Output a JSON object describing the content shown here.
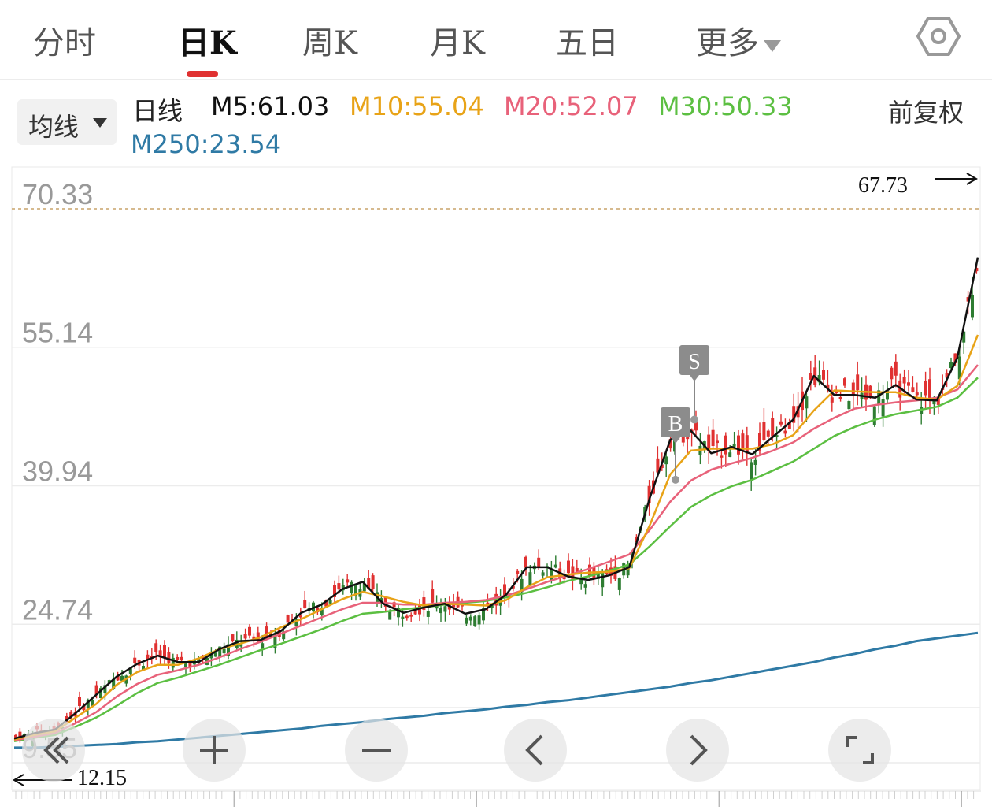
{
  "tabs": [
    {
      "label": "分时"
    },
    {
      "label": "日K"
    },
    {
      "label": "周K"
    },
    {
      "label": "月K"
    },
    {
      "label": "五日"
    },
    {
      "label": "更多"
    }
  ],
  "active_tab": "日K",
  "indicator_select": "均线",
  "period_label": "日线",
  "ma_values": {
    "m5": "M5:61.03",
    "m10": "M10:55.04",
    "m20": "M20:52.07",
    "m30": "M30:50.33",
    "m250": "M250:23.54"
  },
  "colors": {
    "m5": "#111111",
    "m10": "#e8a317",
    "m20": "#e8627a",
    "m30": "#5cbf42",
    "m250": "#2f7aa5",
    "up": "#e03131",
    "down": "#2e7d32"
  },
  "adjust_label": "前复权",
  "controls": [
    "double-left-arrow-icon",
    "zoom-in-icon",
    "zoom-out-icon",
    "left-arrow-icon",
    "right-arrow-icon",
    "fullscreen-icon"
  ],
  "chart_data": {
    "type": "candlestick",
    "y_tick_labels": [
      "70.33",
      "55.14",
      "39.94",
      "24.74",
      "9.55"
    ],
    "ylim": [
      9.55,
      70.33
    ],
    "max_label": "67.73",
    "min_label": "12.15",
    "annotations": [
      {
        "label": "B",
        "price": 40.6
      },
      {
        "label": "S",
        "price": 47.2
      }
    ],
    "series": [
      {
        "name": "M5",
        "values": [
          12.2,
          12.8,
          13.2,
          15,
          17,
          19,
          20.4,
          21.3,
          20.6,
          20.6,
          22,
          22.9,
          23,
          24,
          26,
          26.9,
          28.6,
          29.4,
          27,
          26,
          26.6,
          27,
          25.9,
          26.4,
          28,
          31,
          31,
          30,
          29.6,
          30.1,
          31,
          38.6,
          45,
          46,
          43.5,
          44.2,
          43.4,
          45.3,
          47.2,
          52,
          49.9,
          49.9,
          49.6,
          51,
          49.4,
          49.3,
          54,
          65
        ]
      },
      {
        "name": "M10",
        "values": [
          12.1,
          12.6,
          13,
          14.5,
          16,
          18.1,
          19.5,
          20.3,
          20.3,
          21,
          22,
          22.6,
          23.3,
          24.4,
          25.3,
          26.4,
          27.5,
          28.3,
          27.8,
          27.2,
          26.8,
          27,
          26.9,
          26.8,
          27.4,
          28.8,
          29.9,
          30.2,
          30.4,
          30.5,
          30.9,
          35.6,
          41.2,
          43.8,
          44,
          44,
          44,
          44.5,
          45.5,
          48.2,
          50.4,
          50.3,
          50.2,
          50.2,
          49.6,
          49.4,
          50.9,
          56.5
        ]
      },
      {
        "name": "M20",
        "values": [
          12,
          12.4,
          12.8,
          13.9,
          15.1,
          16.8,
          18.2,
          19.2,
          19.7,
          20.3,
          21.1,
          22,
          22.8,
          23.7,
          24.6,
          25.5,
          26.4,
          27.1,
          27.1,
          26.9,
          26.9,
          27.1,
          27.2,
          27.4,
          27.9,
          28.6,
          29.4,
          30.1,
          30.8,
          31.6,
          32.4,
          35.1,
          38.2,
          40.5,
          41.7,
          42.4,
          43,
          43.8,
          44.7,
          46.2,
          47.4,
          48.4,
          48.8,
          49.1,
          49.3,
          49.6,
          50.5,
          53.2
        ]
      },
      {
        "name": "M30",
        "values": [
          11.9,
          12.3,
          12.6,
          13.5,
          14.5,
          15.8,
          17.2,
          18.3,
          18.9,
          19.6,
          20.3,
          21.1,
          21.9,
          22.6,
          23.4,
          24.2,
          25.1,
          25.9,
          26.1,
          26.4,
          26.6,
          26.9,
          27.1,
          27.3,
          27.7,
          28.2,
          28.8,
          29.5,
          30,
          30.6,
          31.3,
          33.3,
          35.5,
          37.6,
          38.9,
          39.9,
          40.6,
          41.6,
          42.6,
          44,
          45.4,
          46.4,
          47.2,
          47.8,
          48.2,
          48.6,
          49.6,
          51.8
        ]
      },
      {
        "name": "M250",
        "values": [
          11.2,
          11.2,
          11.3,
          11.4,
          11.5,
          11.6,
          11.8,
          11.9,
          12.1,
          12.3,
          12.5,
          12.7,
          12.9,
          13.1,
          13.3,
          13.6,
          13.8,
          14,
          14.3,
          14.5,
          14.7,
          15,
          15.2,
          15.4,
          15.7,
          15.9,
          16.2,
          16.4,
          16.7,
          17,
          17.3,
          17.6,
          17.9,
          18.3,
          18.6,
          19,
          19.4,
          19.8,
          20.2,
          20.6,
          21.1,
          21.5,
          22,
          22.4,
          22.9,
          23.2,
          23.5,
          23.8
        ]
      }
    ]
  }
}
